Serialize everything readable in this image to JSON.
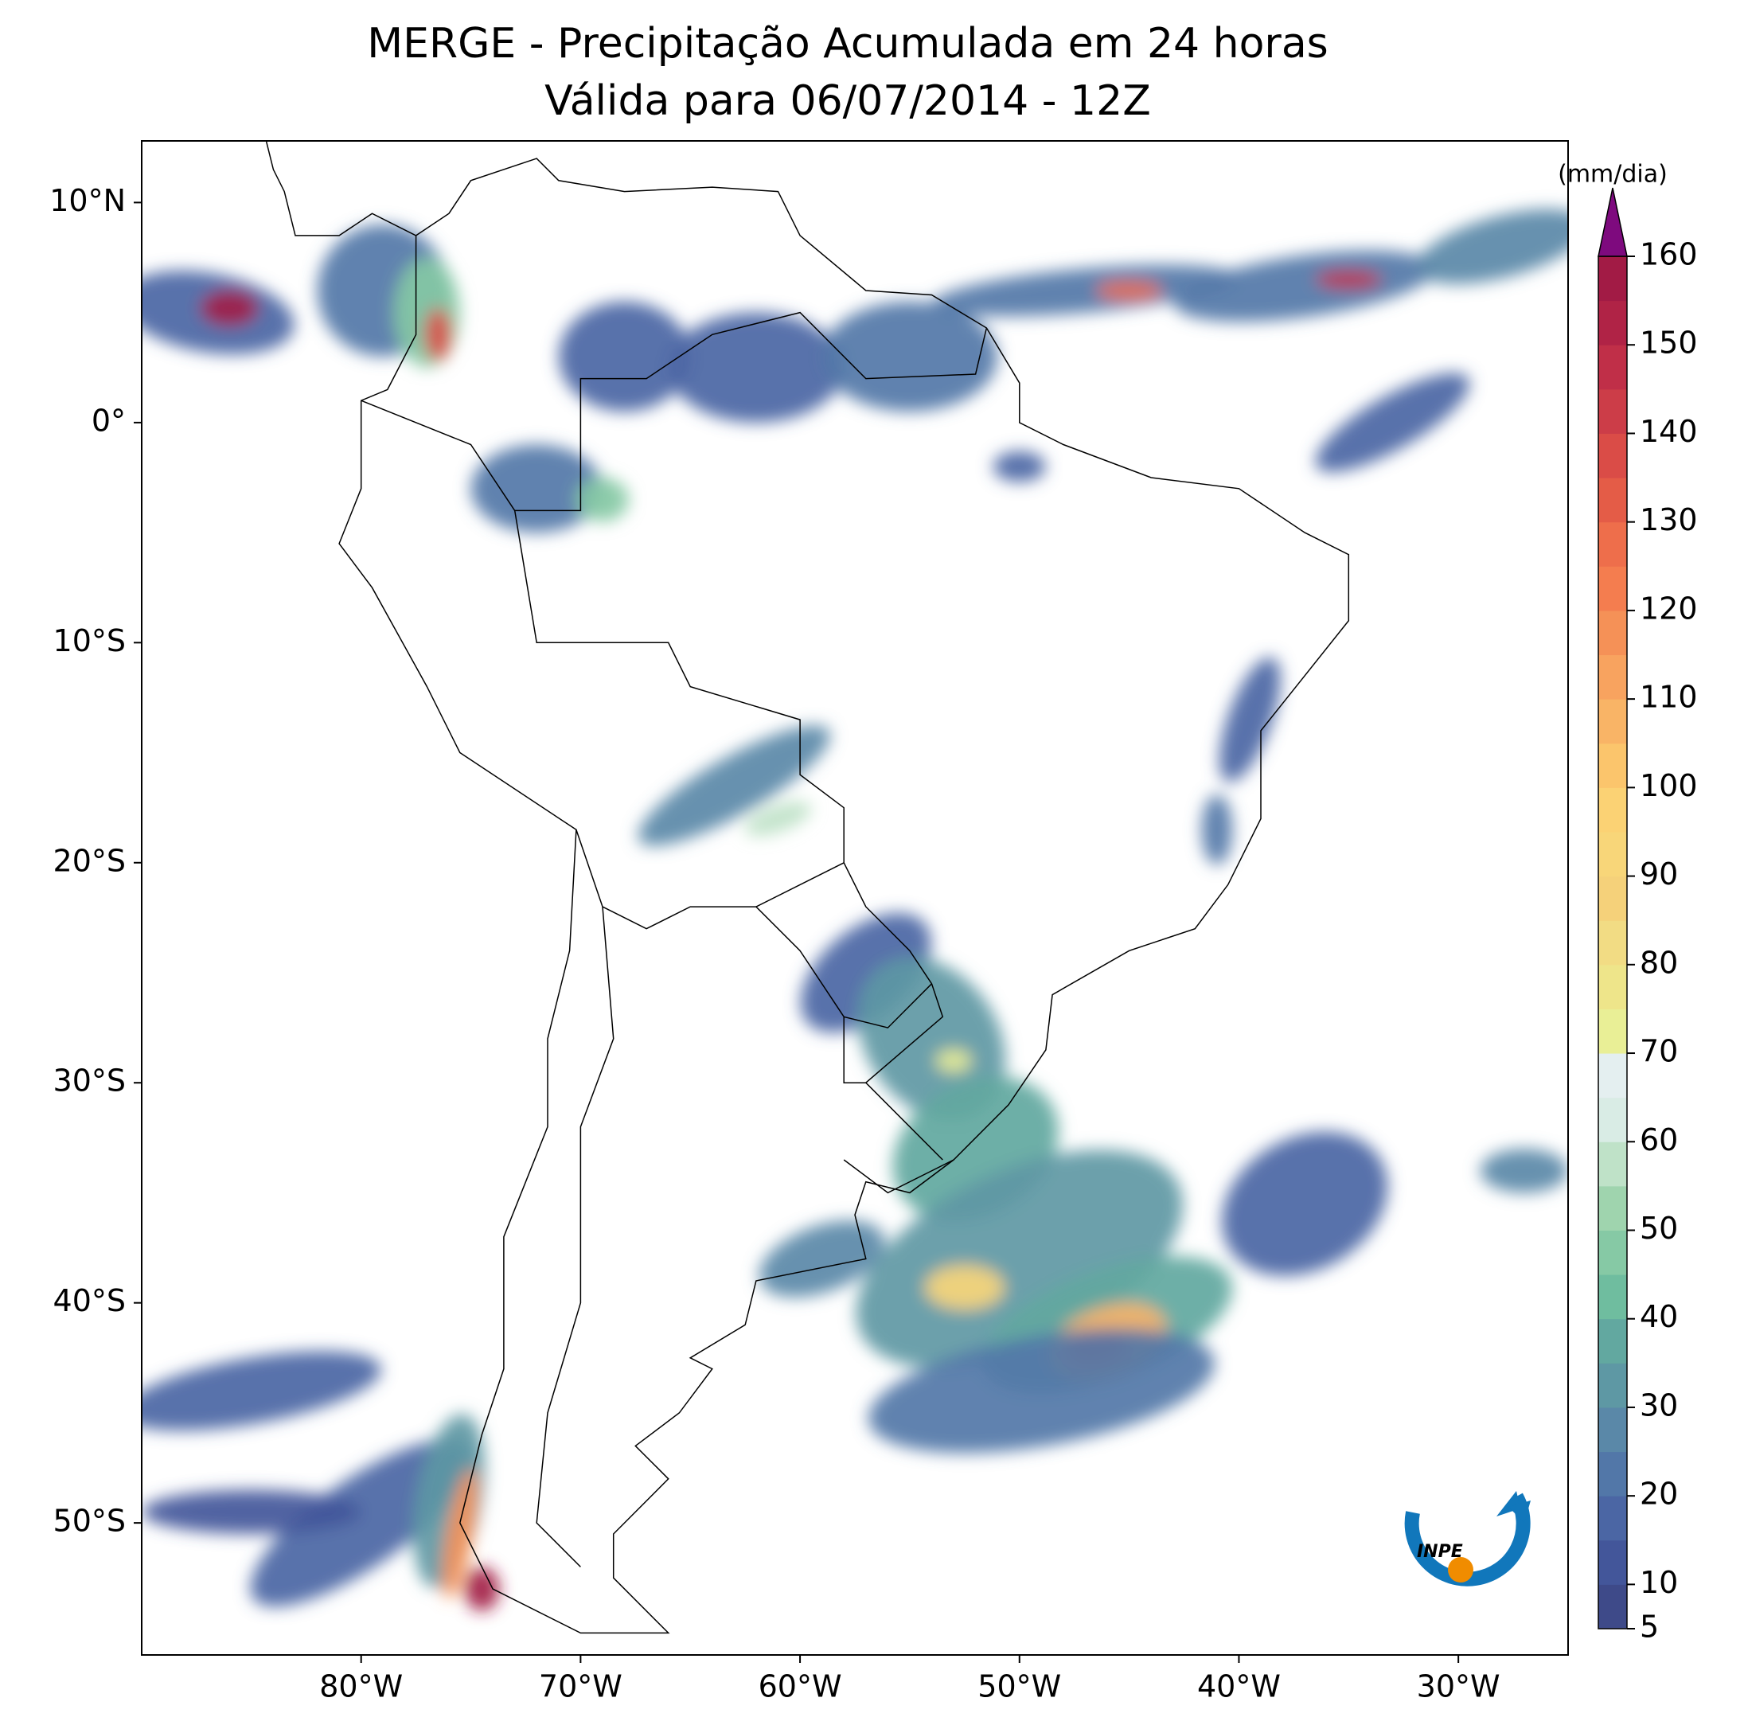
{
  "title": "MERGE - Precipitação Acumulada em 24 horas",
  "subtitle": "Válida para 06/07/2014 - 12Z",
  "map": {
    "xlim": [
      -90,
      -25
    ],
    "ylim": [
      -56,
      12.8
    ],
    "xticks": [
      {
        "value": -80,
        "label": "80°W"
      },
      {
        "value": -70,
        "label": "70°W"
      },
      {
        "value": -60,
        "label": "60°W"
      },
      {
        "value": -50,
        "label": "50°W"
      },
      {
        "value": -40,
        "label": "40°W"
      },
      {
        "value": -30,
        "label": "30°W"
      }
    ],
    "yticks": [
      {
        "value": 10,
        "label": "10°N"
      },
      {
        "value": 0,
        "label": "0°"
      },
      {
        "value": -10,
        "label": "10°S"
      },
      {
        "value": -20,
        "label": "20°S"
      },
      {
        "value": -30,
        "label": "30°S"
      },
      {
        "value": -40,
        "label": "40°S"
      },
      {
        "value": -50,
        "label": "50°S"
      }
    ]
  },
  "colorbar": {
    "label": "(mm/dia)",
    "levels": [
      5,
      10,
      15,
      20,
      25,
      30,
      35,
      40,
      45,
      50,
      55,
      60,
      65,
      70,
      75,
      80,
      85,
      90,
      95,
      100,
      105,
      110,
      115,
      120,
      125,
      130,
      135,
      140,
      145,
      150,
      155,
      160
    ],
    "colors": [
      "#3e4a89",
      "#43569a",
      "#4b66a4",
      "#5277a8",
      "#5a88a8",
      "#5e98a4",
      "#62a8a0",
      "#6fbd9f",
      "#86c9a5",
      "#9fd4ae",
      "#bfe2c8",
      "#d9ece5",
      "#e4eff0",
      "#e9ef96",
      "#eee58a",
      "#f2dc84",
      "#f5d17a",
      "#f8d679",
      "#fbd274",
      "#fbc56c",
      "#f9b466",
      "#f8a35f",
      "#f59157",
      "#f47d4f",
      "#ee6e4b",
      "#e45c47",
      "#da4c47",
      "#cc3d48",
      "#c02f48",
      "#b02346",
      "#a21b45"
    ],
    "extend_color": "#7e0a7e",
    "ticks": [
      5,
      10,
      20,
      30,
      40,
      50,
      60,
      70,
      80,
      90,
      100,
      110,
      120,
      130,
      140,
      150,
      160
    ]
  },
  "logo_text": "INPE"
}
